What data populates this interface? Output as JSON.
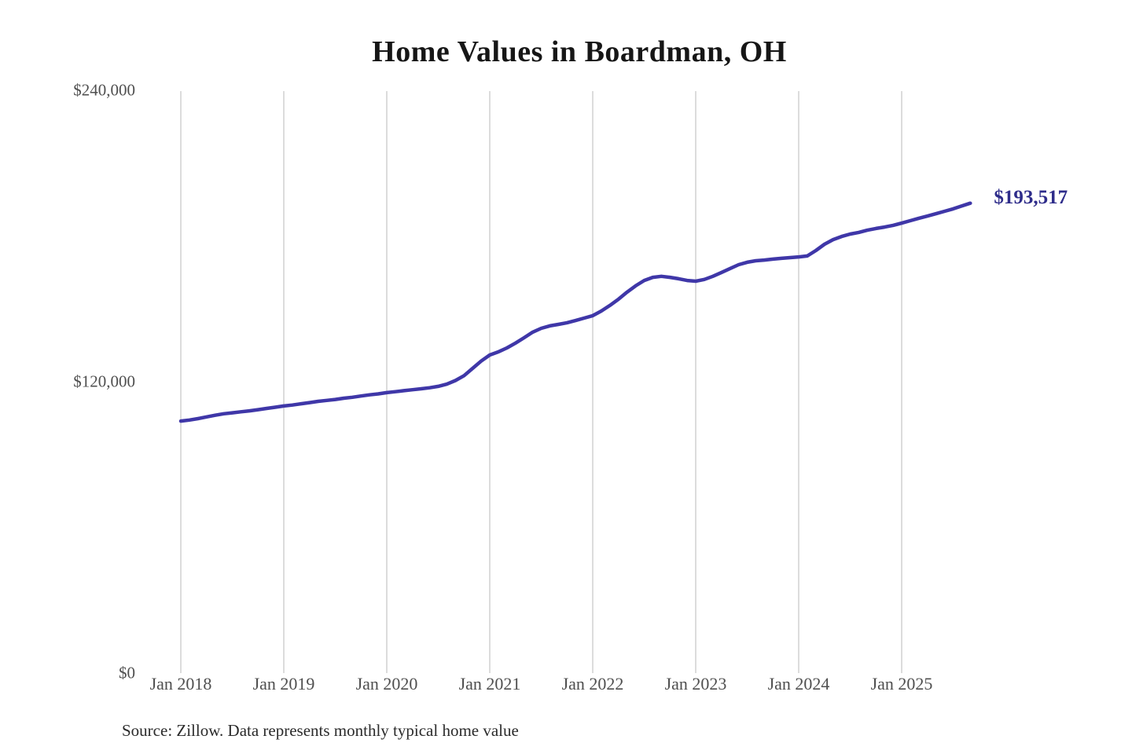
{
  "title": "Home Values in Boardman, OH",
  "source_note": "Source: Zillow. Data represents monthly typical home value",
  "end_label": "$193,517",
  "colors": {
    "line": "#3f37a8",
    "end_label": "#2e2c8a",
    "title_text": "#161616",
    "axis_text": "#4f4f4f",
    "gridline": "#c9c9c9",
    "background": "#ffffff"
  },
  "chart_data": {
    "type": "line",
    "title": "Home Values in Boardman, OH",
    "xlabel": "",
    "ylabel": "",
    "grid": "vertical-only",
    "legend": "none",
    "ylim": [
      0,
      240000
    ],
    "y_ticks": [
      {
        "value": 0,
        "label": "$0"
      },
      {
        "value": 120000,
        "label": "$120,000"
      },
      {
        "value": 240000,
        "label": "$240,000"
      }
    ],
    "x_ticks": [
      {
        "month_index": 0,
        "label": "Jan 2018"
      },
      {
        "month_index": 12,
        "label": "Jan 2019"
      },
      {
        "month_index": 24,
        "label": "Jan 2020"
      },
      {
        "month_index": 36,
        "label": "Jan 2021"
      },
      {
        "month_index": 48,
        "label": "Jan 2022"
      },
      {
        "month_index": 60,
        "label": "Jan 2023"
      },
      {
        "month_index": 72,
        "label": "Jan 2024"
      },
      {
        "month_index": 84,
        "label": "Jan 2025"
      }
    ],
    "annotation": {
      "text": "$193,517",
      "value": 193517,
      "position": "line-end"
    },
    "series": [
      {
        "name": "Monthly typical home value",
        "color": "#3f37a8",
        "start_month": "2018-01",
        "end_month": "2025-09",
        "months": [
          "2018-01",
          "2018-02",
          "2018-03",
          "2018-04",
          "2018-05",
          "2018-06",
          "2018-07",
          "2018-08",
          "2018-09",
          "2018-10",
          "2018-11",
          "2018-12",
          "2019-01",
          "2019-02",
          "2019-03",
          "2019-04",
          "2019-05",
          "2019-06",
          "2019-07",
          "2019-08",
          "2019-09",
          "2019-10",
          "2019-11",
          "2019-12",
          "2020-01",
          "2020-02",
          "2020-03",
          "2020-04",
          "2020-05",
          "2020-06",
          "2020-07",
          "2020-08",
          "2020-09",
          "2020-10",
          "2020-11",
          "2020-12",
          "2021-01",
          "2021-02",
          "2021-03",
          "2021-04",
          "2021-05",
          "2021-06",
          "2021-07",
          "2021-08",
          "2021-09",
          "2021-10",
          "2021-11",
          "2021-12",
          "2022-01",
          "2022-02",
          "2022-03",
          "2022-04",
          "2022-05",
          "2022-06",
          "2022-07",
          "2022-08",
          "2022-09",
          "2022-10",
          "2022-11",
          "2022-12",
          "2023-01",
          "2023-02",
          "2023-03",
          "2023-04",
          "2023-05",
          "2023-06",
          "2023-07",
          "2023-08",
          "2023-09",
          "2023-10",
          "2023-11",
          "2023-12",
          "2024-01",
          "2024-02",
          "2024-03",
          "2024-04",
          "2024-05",
          "2024-06",
          "2024-07",
          "2024-08",
          "2024-09",
          "2024-10",
          "2024-11",
          "2024-12",
          "2025-01",
          "2025-02",
          "2025-03",
          "2025-04",
          "2025-05",
          "2025-06",
          "2025-07",
          "2025-08",
          "2025-09"
        ],
        "values": [
          103800,
          104200,
          104800,
          105500,
          106200,
          106800,
          107200,
          107600,
          108000,
          108500,
          109000,
          109500,
          110000,
          110400,
          110900,
          111400,
          111900,
          112300,
          112700,
          113200,
          113600,
          114100,
          114600,
          115000,
          115500,
          115900,
          116300,
          116700,
          117100,
          117500,
          118100,
          119000,
          120500,
          122500,
          125500,
          128500,
          131000,
          132300,
          133900,
          135900,
          138100,
          140400,
          142000,
          143000,
          143600,
          144300,
          145200,
          146200,
          147200,
          149100,
          151400,
          154000,
          156900,
          159500,
          161700,
          163000,
          163400,
          163000,
          162400,
          161700,
          161400,
          162100,
          163400,
          165000,
          166600,
          168200,
          169200,
          169800,
          170100,
          170500,
          170800,
          171100,
          171400,
          171800,
          174000,
          176600,
          178500,
          179800,
          180800,
          181500,
          182400,
          183100,
          183700,
          184400,
          185300,
          186300,
          187300,
          188200,
          189200,
          190200,
          191200,
          192400,
          193517
        ]
      }
    ]
  }
}
